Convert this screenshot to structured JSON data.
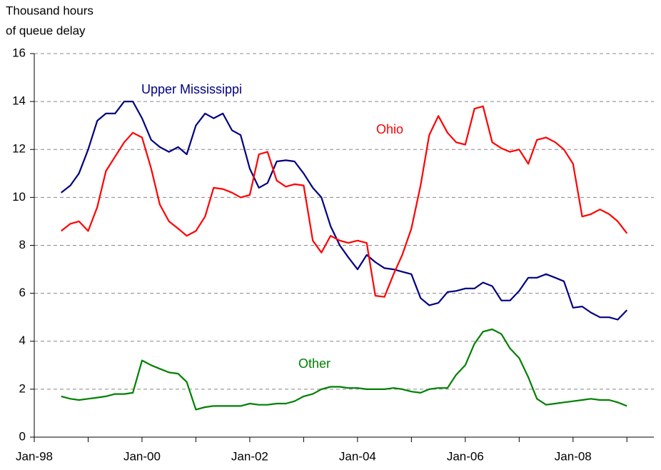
{
  "chart_data": {
    "type": "line",
    "ylabel": [
      "Thousand hours",
      "of queue delay"
    ],
    "x": [
      1998.5,
      1998.67,
      1998.83,
      1999.0,
      1999.17,
      1999.33,
      1999.5,
      1999.67,
      1999.83,
      2000.0,
      2000.17,
      2000.33,
      2000.5,
      2000.67,
      2000.83,
      2001.0,
      2001.17,
      2001.33,
      2001.5,
      2001.67,
      2001.83,
      2002.0,
      2002.17,
      2002.33,
      2002.5,
      2002.67,
      2002.83,
      2003.0,
      2003.17,
      2003.33,
      2003.5,
      2003.67,
      2003.83,
      2004.0,
      2004.17,
      2004.33,
      2004.5,
      2004.67,
      2004.83,
      2005.0,
      2005.17,
      2005.33,
      2005.5,
      2005.67,
      2005.83,
      2006.0,
      2006.17,
      2006.33,
      2006.5,
      2006.67,
      2006.83,
      2007.0,
      2007.17,
      2007.33,
      2007.5,
      2007.67,
      2007.83,
      2008.0,
      2008.17,
      2008.33,
      2008.5,
      2008.67,
      2008.83,
      2009.0
    ],
    "series": [
      {
        "name": "Upper Mississippi",
        "color": "#000080",
        "values": [
          10.2,
          10.5,
          11.0,
          12.0,
          13.2,
          13.5,
          13.5,
          14.0,
          14.0,
          13.3,
          12.4,
          12.1,
          11.9,
          12.1,
          11.8,
          13.0,
          13.5,
          13.3,
          13.5,
          12.8,
          12.6,
          11.2,
          10.4,
          10.6,
          11.5,
          11.55,
          11.5,
          11.0,
          10.4,
          10.0,
          8.8,
          8.0,
          7.5,
          7.0,
          7.6,
          7.3,
          7.05,
          7.0,
          6.9,
          6.8,
          5.8,
          5.5,
          5.6,
          6.05,
          6.1,
          6.2,
          6.2,
          6.45,
          6.3,
          5.7,
          5.7,
          6.1,
          6.65,
          6.65,
          6.8,
          6.65,
          6.5,
          5.4,
          5.45,
          5.2,
          5.0,
          5.0,
          4.9,
          5.3
        ]
      },
      {
        "name": "Ohio",
        "color": "#ff0000",
        "values": [
          8.6,
          8.9,
          9.0,
          8.6,
          9.6,
          11.1,
          11.7,
          12.3,
          12.7,
          12.5,
          11.2,
          9.7,
          9.0,
          8.7,
          8.4,
          8.6,
          9.2,
          10.4,
          10.35,
          10.2,
          10.0,
          10.1,
          11.8,
          11.9,
          10.7,
          10.45,
          10.55,
          10.5,
          8.2,
          7.7,
          8.4,
          8.2,
          8.1,
          8.2,
          8.1,
          5.9,
          5.85,
          6.8,
          7.6,
          8.7,
          10.5,
          12.6,
          13.4,
          12.7,
          12.3,
          12.2,
          13.7,
          13.8,
          12.3,
          12.05,
          11.9,
          12.0,
          11.4,
          12.4,
          12.5,
          12.3,
          12.0,
          11.4,
          9.2,
          9.3,
          9.5,
          9.3,
          9.0,
          8.5
        ]
      },
      {
        "name": "Other",
        "color": "#008000",
        "values": [
          1.7,
          1.6,
          1.55,
          1.6,
          1.65,
          1.7,
          1.8,
          1.8,
          1.85,
          3.2,
          3.0,
          2.85,
          2.7,
          2.65,
          2.3,
          1.15,
          1.25,
          1.3,
          1.3,
          1.3,
          1.3,
          1.4,
          1.35,
          1.35,
          1.4,
          1.4,
          1.5,
          1.7,
          1.8,
          2.0,
          2.1,
          2.1,
          2.05,
          2.05,
          2.0,
          2.0,
          2.0,
          2.05,
          2.0,
          1.9,
          1.85,
          2.0,
          2.05,
          2.05,
          2.6,
          3.0,
          3.9,
          4.4,
          4.5,
          4.3,
          3.7,
          3.3,
          2.5,
          1.6,
          1.35,
          1.4,
          1.45,
          1.5,
          1.55,
          1.6,
          1.55,
          1.55,
          1.45,
          1.3
        ]
      }
    ],
    "xlim": [
      1998,
      2009.5
    ],
    "xticks": [
      {
        "value": 1998,
        "label": "Jan-98"
      },
      {
        "value": 2000,
        "label": "Jan-00"
      },
      {
        "value": 2002,
        "label": "Jan-02"
      },
      {
        "value": 2004,
        "label": "Jan-04"
      },
      {
        "value": 2006,
        "label": "Jan-06"
      },
      {
        "value": 2008,
        "label": "Jan-08"
      }
    ],
    "xminor_ticks": [
      1999,
      2001,
      2003,
      2005,
      2007,
      2009
    ],
    "ylim": [
      0,
      16
    ],
    "yticks": [
      0,
      2,
      4,
      6,
      8,
      10,
      12,
      14,
      16
    ],
    "grid": true
  }
}
